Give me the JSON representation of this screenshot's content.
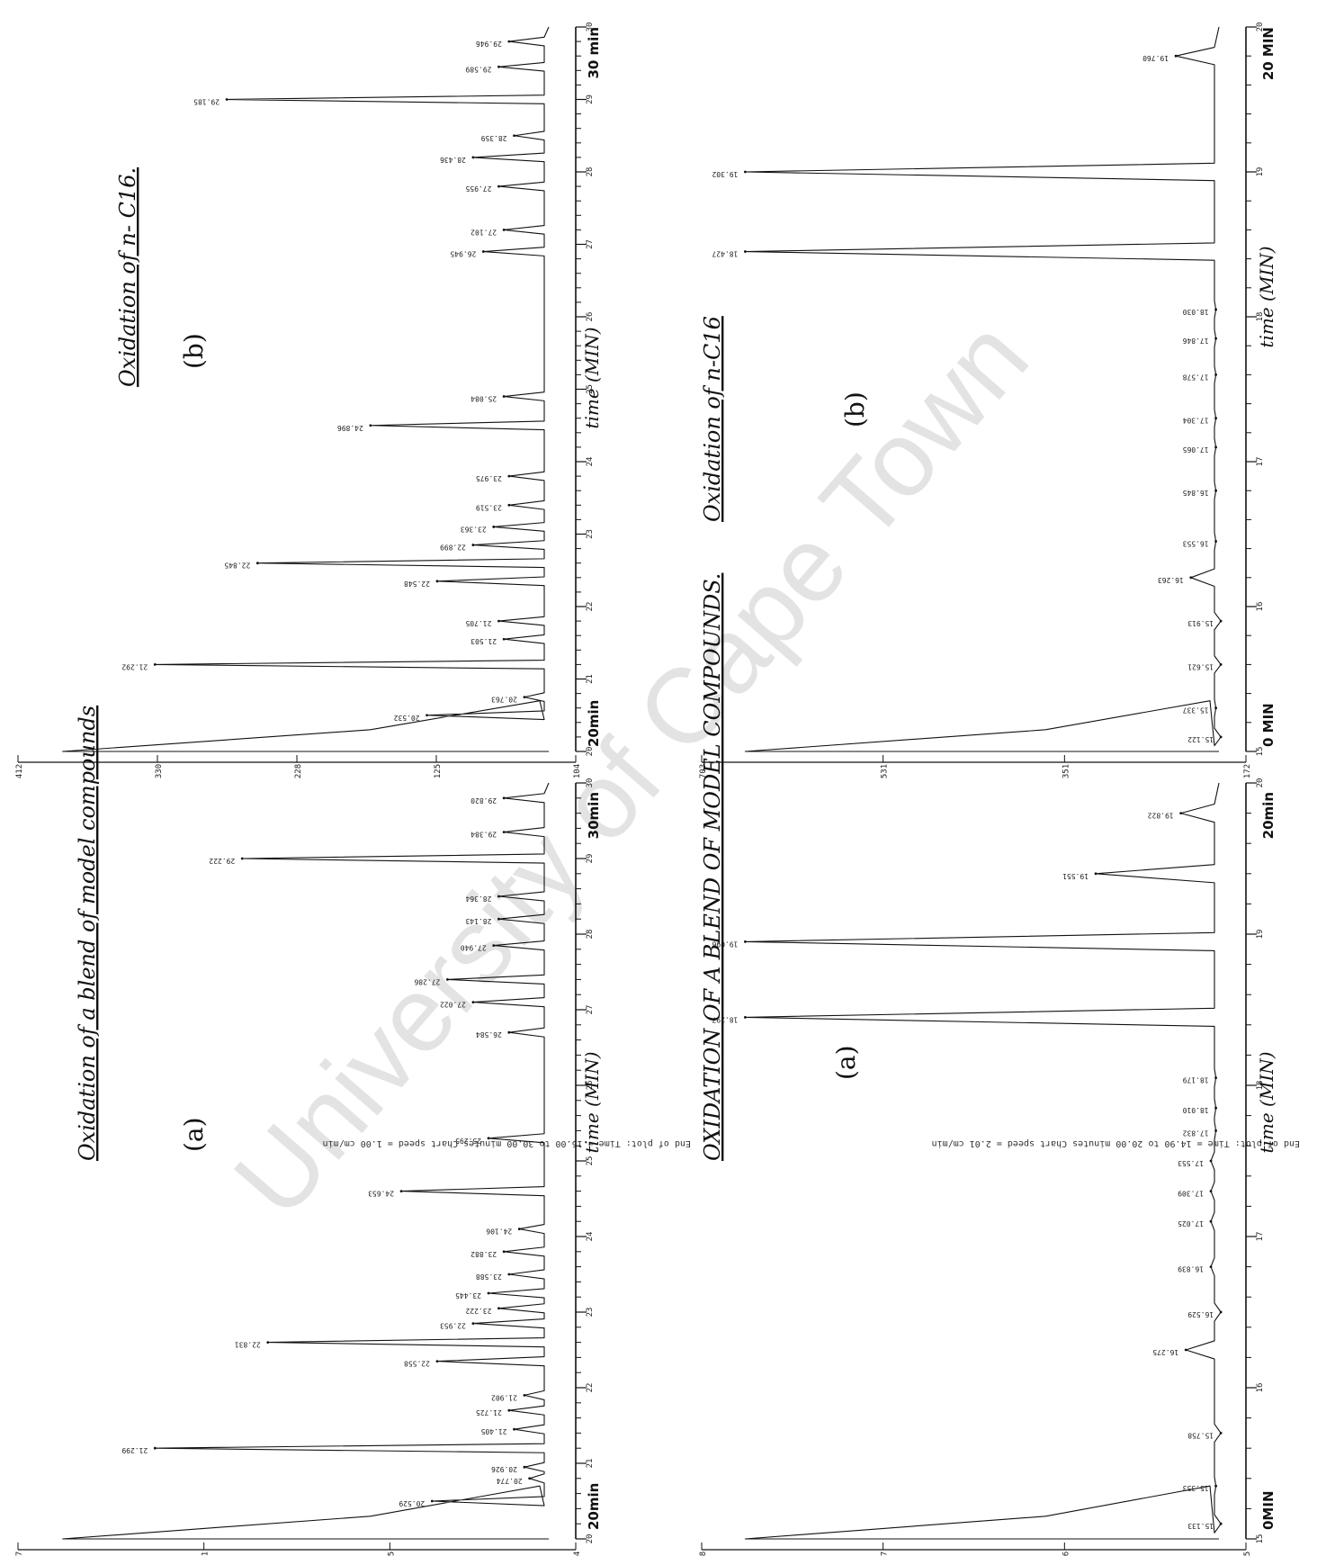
{
  "page": {
    "watermark": "University of Cape Town",
    "footers": [
      "End of plot: Time = 15.00 to 30.00 minutes     Chart speed = 1.00 cm/min",
      "End of plot: Time = 14.90 to 20.00 minutes     Chart speed = 2.01 cm/min"
    ]
  },
  "chart_data": [
    {
      "type": "line",
      "panel": "top-left",
      "title": "Oxidation of a blend of model compounds",
      "letter": "(a)",
      "xlabel": "time (MIN)",
      "x_start_label": "20min",
      "x_end_label": "30min",
      "xlim": [
        20,
        30
      ],
      "y_ticks": [
        "237",
        "191",
        "145",
        "104"
      ],
      "x_ticks": [
        "20",
        "21",
        "22",
        "23",
        "24",
        "25",
        "26",
        "27",
        "28",
        "29",
        "30"
      ],
      "peaks": [
        {
          "x": 20.5,
          "h": 0.28,
          "label": "20.529"
        },
        {
          "x": 20.8,
          "h": 0.09,
          "label": "20.774"
        },
        {
          "x": 20.95,
          "h": 0.1,
          "label": "20.926"
        },
        {
          "x": 21.2,
          "h": 0.82,
          "label": "21.299"
        },
        {
          "x": 21.45,
          "h": 0.12,
          "label": "21.405"
        },
        {
          "x": 21.7,
          "h": 0.13,
          "label": "21.725"
        },
        {
          "x": 21.9,
          "h": 0.1,
          "label": "21.902"
        },
        {
          "x": 22.35,
          "h": 0.27,
          "label": "22.558"
        },
        {
          "x": 22.6,
          "h": 0.6,
          "label": "22.831"
        },
        {
          "x": 22.85,
          "h": 0.2,
          "label": "22.953"
        },
        {
          "x": 23.05,
          "h": 0.15,
          "label": "23.222"
        },
        {
          "x": 23.25,
          "h": 0.17,
          "label": "23.445"
        },
        {
          "x": 23.5,
          "h": 0.13,
          "label": "23.588"
        },
        {
          "x": 23.8,
          "h": 0.14,
          "label": "23.882"
        },
        {
          "x": 24.1,
          "h": 0.11,
          "label": "24.106"
        },
        {
          "x": 24.6,
          "h": 0.34,
          "label": "24.653"
        },
        {
          "x": 25.3,
          "h": 0.17,
          "label": "25.295"
        },
        {
          "x": 26.7,
          "h": 0.13,
          "label": "26.584"
        },
        {
          "x": 27.1,
          "h": 0.2,
          "label": "27.022"
        },
        {
          "x": 27.4,
          "h": 0.25,
          "label": "27.286"
        },
        {
          "x": 27.85,
          "h": 0.16,
          "label": "27.940"
        },
        {
          "x": 28.2,
          "h": 0.15,
          "label": "28.143"
        },
        {
          "x": 28.5,
          "h": 0.15,
          "label": "28.364"
        },
        {
          "x": 29.0,
          "h": 0.65,
          "label": "29.222"
        },
        {
          "x": 29.35,
          "h": 0.14,
          "label": "29.384"
        },
        {
          "x": 29.8,
          "h": 0.14,
          "label": "29.820"
        }
      ]
    },
    {
      "type": "line",
      "panel": "top-right",
      "title": "Oxidation of n- C16.",
      "letter": "(b)",
      "xlabel": "time (MIN)",
      "x_start_label": "20min",
      "x_end_label": "30 min",
      "xlim": [
        20,
        30
      ],
      "y_ticks": [
        "412",
        "330",
        "228",
        "125",
        "104"
      ],
      "x_ticks": [
        "20",
        "21",
        "22",
        "23",
        "24",
        "25",
        "26",
        "27",
        "28",
        "29",
        "30"
      ],
      "peaks": [
        {
          "x": 20.5,
          "h": 0.29,
          "label": "20.532"
        },
        {
          "x": 20.75,
          "h": 0.1,
          "label": "20.763"
        },
        {
          "x": 21.2,
          "h": 0.82,
          "label": "21.292"
        },
        {
          "x": 21.55,
          "h": 0.14,
          "label": "21.503"
        },
        {
          "x": 21.8,
          "h": 0.15,
          "label": "21.705"
        },
        {
          "x": 22.35,
          "h": 0.27,
          "label": "22.548"
        },
        {
          "x": 22.6,
          "h": 0.62,
          "label": "22.845"
        },
        {
          "x": 22.85,
          "h": 0.2,
          "label": "22.899"
        },
        {
          "x": 23.1,
          "h": 0.16,
          "label": "23.363"
        },
        {
          "x": 23.4,
          "h": 0.13,
          "label": "23.519"
        },
        {
          "x": 23.8,
          "h": 0.13,
          "label": "23.975"
        },
        {
          "x": 24.5,
          "h": 0.4,
          "label": "24.896"
        },
        {
          "x": 24.9,
          "h": 0.14,
          "label": "25.084"
        },
        {
          "x": 26.9,
          "h": 0.18,
          "label": "26.945"
        },
        {
          "x": 27.2,
          "h": 0.14,
          "label": "27.102"
        },
        {
          "x": 27.8,
          "h": 0.15,
          "label": "27.955"
        },
        {
          "x": 28.2,
          "h": 0.2,
          "label": "28.436"
        },
        {
          "x": 28.5,
          "h": 0.12,
          "label": "28.359"
        },
        {
          "x": 29.0,
          "h": 0.68,
          "label": "29.185"
        },
        {
          "x": 29.45,
          "h": 0.15,
          "label": "29.589"
        },
        {
          "x": 29.8,
          "h": 0.13,
          "label": "29.946"
        }
      ]
    },
    {
      "type": "line",
      "panel": "bottom-left",
      "title": "OXIDATION OF A BLEND OF MODEL COMPOUNDS.",
      "letter": "(a)",
      "xlabel": "time (MIN)",
      "x_start_label": "0MIN",
      "x_end_label": "20min",
      "xlim": [
        15,
        20
      ],
      "y_ticks": [
        "708",
        "517",
        "366",
        "195"
      ],
      "x_ticks": [
        "15",
        "16",
        "17",
        "18",
        "19",
        "20"
      ],
      "peaks": [
        {
          "x": 15.1,
          "h": 0.05,
          "label": "15.133"
        },
        {
          "x": 15.35,
          "h": 0.06,
          "label": "15.353"
        },
        {
          "x": 15.7,
          "h": 0.05,
          "label": "15.758"
        },
        {
          "x": 16.25,
          "h": 0.12,
          "label": "16.275"
        },
        {
          "x": 16.5,
          "h": 0.05,
          "label": "16.529"
        },
        {
          "x": 16.8,
          "h": 0.07,
          "label": "16.839"
        },
        {
          "x": 17.1,
          "h": 0.07,
          "label": "17.025"
        },
        {
          "x": 17.3,
          "h": 0.07,
          "label": "17.309"
        },
        {
          "x": 17.5,
          "h": 0.07,
          "label": "17.553"
        },
        {
          "x": 17.7,
          "h": 0.06,
          "label": "17.832"
        },
        {
          "x": 17.85,
          "h": 0.06,
          "label": "18.010"
        },
        {
          "x": 18.05,
          "h": 0.06,
          "label": "18.179"
        },
        {
          "x": 18.45,
          "h": 1.0,
          "label": "18.297"
        },
        {
          "x": 18.95,
          "h": 1.0,
          "label": "19.096"
        },
        {
          "x": 19.4,
          "h": 0.3,
          "label": "19.551"
        },
        {
          "x": 19.8,
          "h": 0.13,
          "label": "19.822"
        }
      ]
    },
    {
      "type": "line",
      "panel": "bottom-right",
      "title": "Oxidation of n-C16",
      "letter": "(b)",
      "xlabel": "time (MIN)",
      "x_start_label": "0 MIN",
      "x_end_label": "20 MIN",
      "xlim": [
        15,
        20
      ],
      "y_ticks": [
        "703",
        "531",
        "351",
        "172"
      ],
      "x_ticks": [
        "15",
        "16",
        "17",
        "18",
        "19",
        "20"
      ],
      "peaks": [
        {
          "x": 15.1,
          "h": 0.05,
          "label": "15.122"
        },
        {
          "x": 15.3,
          "h": 0.06,
          "label": "15.337"
        },
        {
          "x": 15.6,
          "h": 0.05,
          "label": "15.621"
        },
        {
          "x": 15.9,
          "h": 0.05,
          "label": "15.913"
        },
        {
          "x": 16.2,
          "h": 0.11,
          "label": "16.263"
        },
        {
          "x": 16.45,
          "h": 0.06,
          "label": "16.553"
        },
        {
          "x": 16.8,
          "h": 0.06,
          "label": "16.845"
        },
        {
          "x": 17.1,
          "h": 0.06,
          "label": "17.065"
        },
        {
          "x": 17.3,
          "h": 0.06,
          "label": "17.304"
        },
        {
          "x": 17.6,
          "h": 0.06,
          "label": "17.578"
        },
        {
          "x": 17.85,
          "h": 0.06,
          "label": "17.846"
        },
        {
          "x": 18.05,
          "h": 0.06,
          "label": "18.030"
        },
        {
          "x": 18.45,
          "h": 1.0,
          "label": "18.427"
        },
        {
          "x": 19.0,
          "h": 1.0,
          "label": "19.302"
        },
        {
          "x": 19.8,
          "h": 0.14,
          "label": "19.760"
        }
      ]
    }
  ]
}
